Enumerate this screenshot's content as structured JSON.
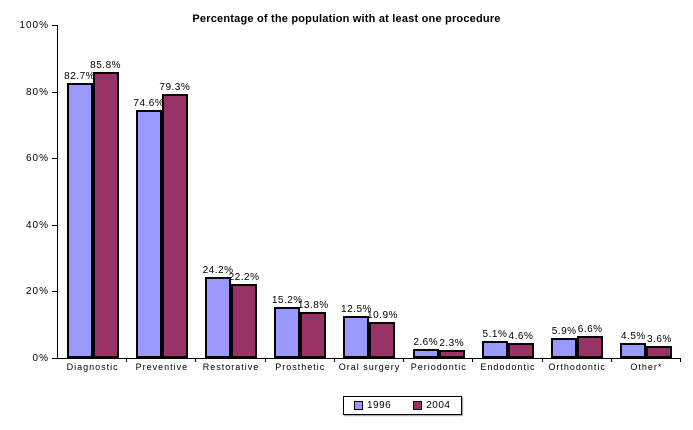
{
  "chart_data": {
    "type": "bar",
    "title": "Percentage of the population with at least one procedure",
    "categories": [
      "Diagnostic",
      "Preventive",
      "Restorative",
      "Prosthetic",
      "Oral surgery",
      "Periodontic",
      "Endodontic",
      "Orthodontic",
      "Other*"
    ],
    "series": [
      {
        "name": "1996",
        "color": "#9999FF",
        "values": [
          82.7,
          74.6,
          24.2,
          15.2,
          12.5,
          2.6,
          5.1,
          5.9,
          4.5
        ]
      },
      {
        "name": "2004",
        "color": "#993366",
        "values": [
          85.8,
          79.3,
          22.2,
          13.8,
          10.9,
          2.3,
          4.6,
          6.6,
          3.6
        ]
      }
    ],
    "value_label_suffix": "%",
    "xlabel": "",
    "ylabel": "",
    "ylim": [
      0,
      100
    ],
    "yticks": [
      "0%",
      "20%",
      "40%",
      "60%",
      "80%",
      "100%"
    ],
    "grid": false,
    "legend_position": "bottom",
    "axis_color": "#000000",
    "background_color": "#FFFFFF",
    "bar_border_color": "#000000"
  }
}
